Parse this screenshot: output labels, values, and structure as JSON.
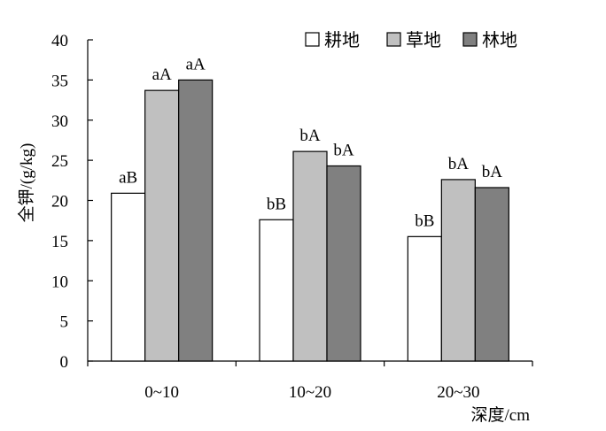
{
  "chart_data": {
    "type": "bar",
    "categories": [
      "0~10",
      "10~20",
      "20~30"
    ],
    "series": [
      {
        "name": "耕地",
        "values": [
          20.9,
          17.6,
          15.5
        ],
        "labels": [
          "aB",
          "bB",
          "bB"
        ],
        "color": "#ffffff"
      },
      {
        "name": "草地",
        "values": [
          33.7,
          26.1,
          22.6
        ],
        "labels": [
          "aA",
          "bA",
          "bA"
        ],
        "color": "#c0c0c0"
      },
      {
        "name": "林地",
        "values": [
          35.0,
          24.3,
          21.6
        ],
        "labels": [
          "aA",
          "bA",
          "bA"
        ],
        "color": "#808080"
      }
    ],
    "ylabel": "全钾/(g/kg)",
    "xlabel": "深度/cm",
    "ylim": [
      0,
      40
    ],
    "yticks": [
      0,
      5,
      10,
      15,
      20,
      25,
      30,
      35,
      40
    ],
    "legend_position": "top-right",
    "grid": false
  }
}
